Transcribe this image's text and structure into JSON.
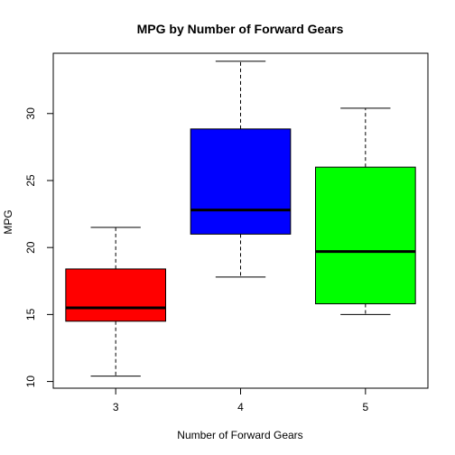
{
  "chart_data": {
    "type": "boxplot",
    "title": "MPG by Number of Forward Gears",
    "xlabel": "Number of Forward Gears",
    "ylabel": "MPG",
    "categories": [
      "3",
      "4",
      "5"
    ],
    "boxes": [
      {
        "category": "3",
        "whisker_low": 10.4,
        "q1": 14.5,
        "median": 15.5,
        "q3": 18.4,
        "whisker_high": 21.5,
        "color": "#ff0000"
      },
      {
        "category": "4",
        "whisker_low": 17.8,
        "q1": 21.0,
        "median": 22.8,
        "q3": 28.85,
        "whisker_high": 33.9,
        "color": "#0000ff"
      },
      {
        "category": "5",
        "whisker_low": 15.0,
        "q1": 15.8,
        "median": 19.7,
        "q3": 26.0,
        "whisker_high": 30.4,
        "color": "#00ff00"
      }
    ],
    "yticks": [
      10,
      15,
      20,
      25,
      30
    ],
    "ytick_labels": [
      "10",
      "15",
      "20",
      "25",
      "30"
    ],
    "ylim": [
      9.5,
      34.5
    ],
    "grid": false,
    "legend": "none"
  }
}
